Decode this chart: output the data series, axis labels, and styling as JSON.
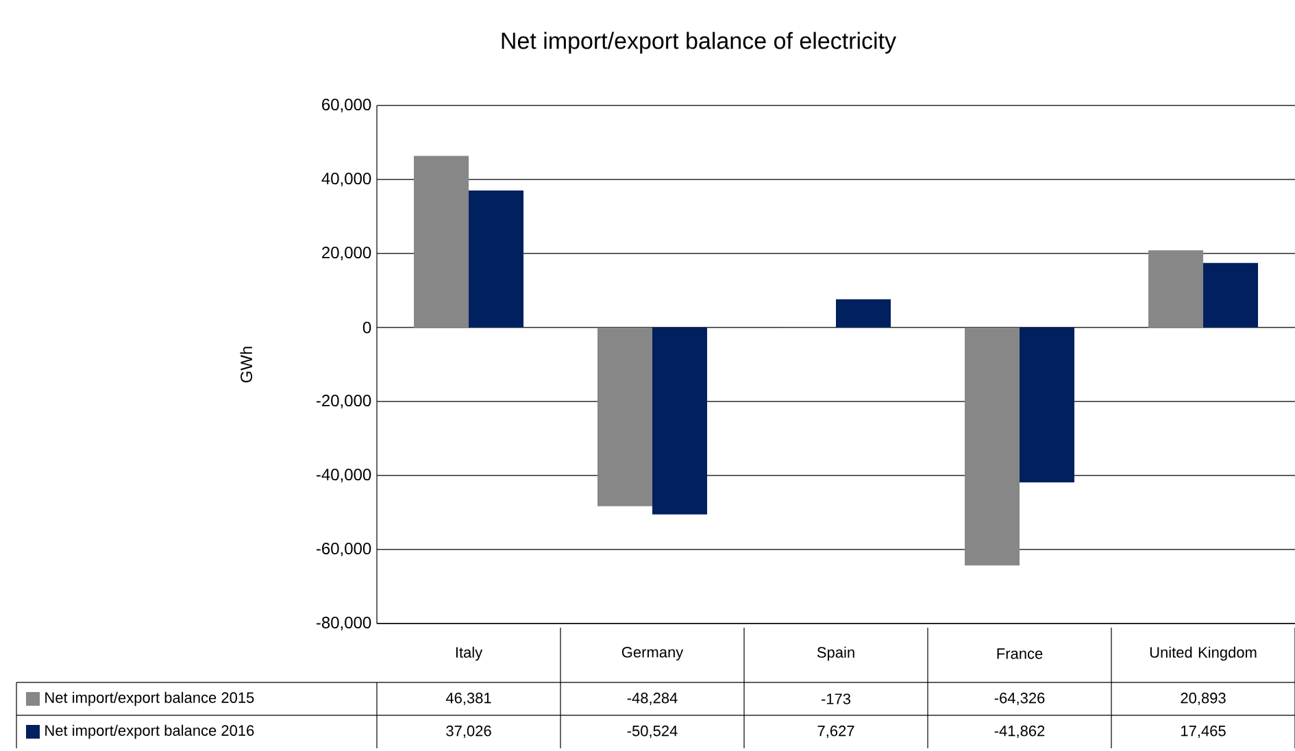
{
  "chart_data": {
    "type": "bar",
    "title": "Net import/export balance of electricity",
    "ylabel": "GWh",
    "categories": [
      "Italy",
      "Germany",
      "Spain",
      "France",
      "United Kingdom"
    ],
    "series": [
      {
        "name": "Net import/export balance 2015",
        "color": "#878787",
        "values": [
          46381,
          -48284,
          -173,
          -64326,
          20893
        ],
        "value_labels": [
          "46,381",
          "-48,284",
          "-173",
          "-64,326",
          "20,893"
        ]
      },
      {
        "name": "Net import/export balance 2016",
        "color": "#002060",
        "values": [
          37026,
          -50524,
          7627,
          -41862,
          17465
        ],
        "value_labels": [
          "37,026",
          "-50,524",
          "7,627",
          "-41,862",
          "17,465"
        ]
      }
    ],
    "ylim": [
      -80000,
      60000
    ],
    "yticks": [
      {
        "value": -80000,
        "label": "-80,000"
      },
      {
        "value": -60000,
        "label": "-60,000"
      },
      {
        "value": -40000,
        "label": "-40,000"
      },
      {
        "value": -20000,
        "label": "-20,000"
      },
      {
        "value": 0,
        "label": "0"
      },
      {
        "value": 20000,
        "label": "20,000"
      },
      {
        "value": 40000,
        "label": "40,000"
      },
      {
        "value": 60000,
        "label": "60,000"
      }
    ],
    "grid": "y",
    "legend": "bottom"
  }
}
